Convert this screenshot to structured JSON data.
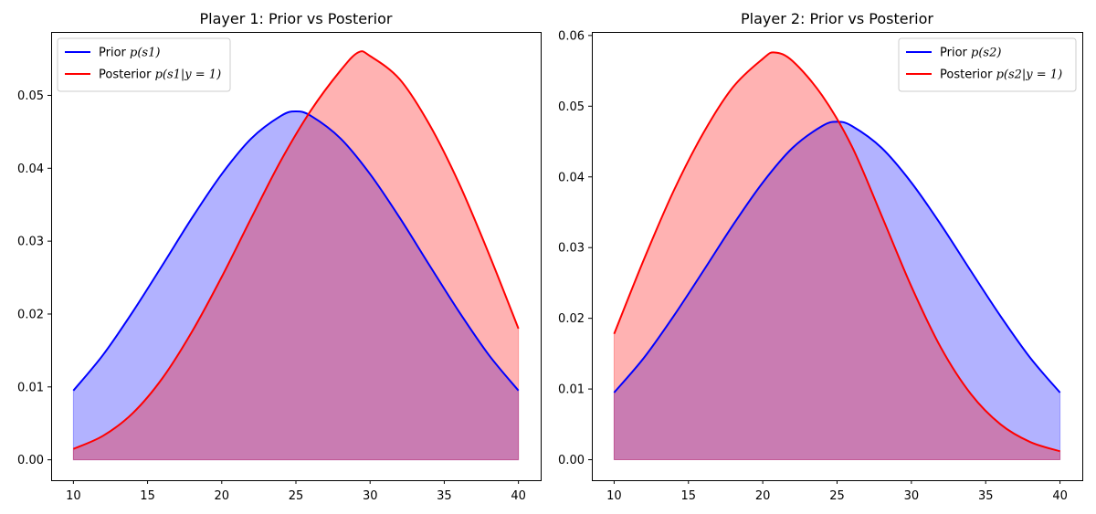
{
  "chart_data": [
    {
      "type": "area",
      "title": "Player 1: Prior vs Posterior",
      "xlim": [
        8.5,
        41.5
      ],
      "ylim": [
        -0.0028,
        0.0587
      ],
      "xticks": [
        10,
        15,
        20,
        25,
        30,
        35,
        40
      ],
      "yticks": [
        0.0,
        0.01,
        0.02,
        0.03,
        0.04,
        0.05
      ],
      "ytick_labels": [
        "0.00",
        "0.01",
        "0.02",
        "0.03",
        "0.04",
        "0.05"
      ],
      "grid": false,
      "legend_position": "upper-left",
      "series": [
        {
          "name": "Prior p(s1)",
          "legend_prefix": "Prior",
          "legend_math": "p(s1)",
          "color": "#0000ff",
          "fill": "#0000ff",
          "x": [
            10,
            12,
            14,
            16,
            18,
            20,
            22,
            24,
            25,
            26,
            28,
            30,
            32,
            34,
            36,
            38,
            40
          ],
          "y": [
            0.0095,
            0.0144,
            0.0203,
            0.0267,
            0.0332,
            0.0392,
            0.0441,
            0.0472,
            0.0478,
            0.0472,
            0.0441,
            0.0392,
            0.0332,
            0.0267,
            0.0203,
            0.0144,
            0.0095
          ]
        },
        {
          "name": "Posterior p(s1|y = 1)",
          "legend_prefix": "Posterior",
          "legend_math": "p(s1|y = 1)",
          "color": "#ff0000",
          "fill": "#ff0000",
          "x": [
            10,
            12,
            14,
            16,
            18,
            20,
            22,
            24,
            26,
            28,
            29.2,
            30,
            32,
            34,
            36,
            38,
            40
          ],
          "y": [
            0.0015,
            0.0033,
            0.0064,
            0.0112,
            0.0176,
            0.0251,
            0.0332,
            0.0411,
            0.0479,
            0.0534,
            0.0559,
            0.0554,
            0.0522,
            0.046,
            0.0379,
            0.0283,
            0.018
          ]
        }
      ]
    },
    {
      "type": "area",
      "title": "Player 2: Prior vs Posterior",
      "xlim": [
        8.5,
        41.5
      ],
      "ylim": [
        -0.0029,
        0.0605
      ],
      "xticks": [
        10,
        15,
        20,
        25,
        30,
        35,
        40
      ],
      "yticks": [
        0.0,
        0.01,
        0.02,
        0.03,
        0.04,
        0.05,
        0.06
      ],
      "ytick_labels": [
        "0.00",
        "0.01",
        "0.02",
        "0.03",
        "0.04",
        "0.05",
        "0.06"
      ],
      "grid": false,
      "legend_position": "upper-right",
      "series": [
        {
          "name": "Prior p(s2)",
          "legend_prefix": "Prior",
          "legend_math": "p(s2)",
          "color": "#0000ff",
          "fill": "#0000ff",
          "x": [
            10,
            12,
            14,
            16,
            18,
            20,
            22,
            24,
            25,
            26,
            28,
            30,
            32,
            34,
            36,
            38,
            40
          ],
          "y": [
            0.0095,
            0.0144,
            0.0203,
            0.0267,
            0.0332,
            0.0392,
            0.0441,
            0.0472,
            0.0478,
            0.0472,
            0.0441,
            0.0392,
            0.0332,
            0.0267,
            0.0203,
            0.0144,
            0.0095
          ]
        },
        {
          "name": "Posterior p(s2|y = 1)",
          "legend_prefix": "Posterior",
          "legend_math": "p(s2|y = 1)",
          "color": "#ff0000",
          "fill": "#ff0000",
          "x": [
            10,
            12,
            14,
            16,
            18,
            20,
            20.8,
            22,
            24,
            26,
            28,
            30,
            32,
            34,
            36,
            38,
            40
          ],
          "y": [
            0.0178,
            0.0283,
            0.038,
            0.0462,
            0.0527,
            0.0567,
            0.0576,
            0.0564,
            0.0515,
            0.0443,
            0.0345,
            0.0245,
            0.0158,
            0.0093,
            0.005,
            0.0025,
            0.0012
          ]
        }
      ]
    }
  ]
}
